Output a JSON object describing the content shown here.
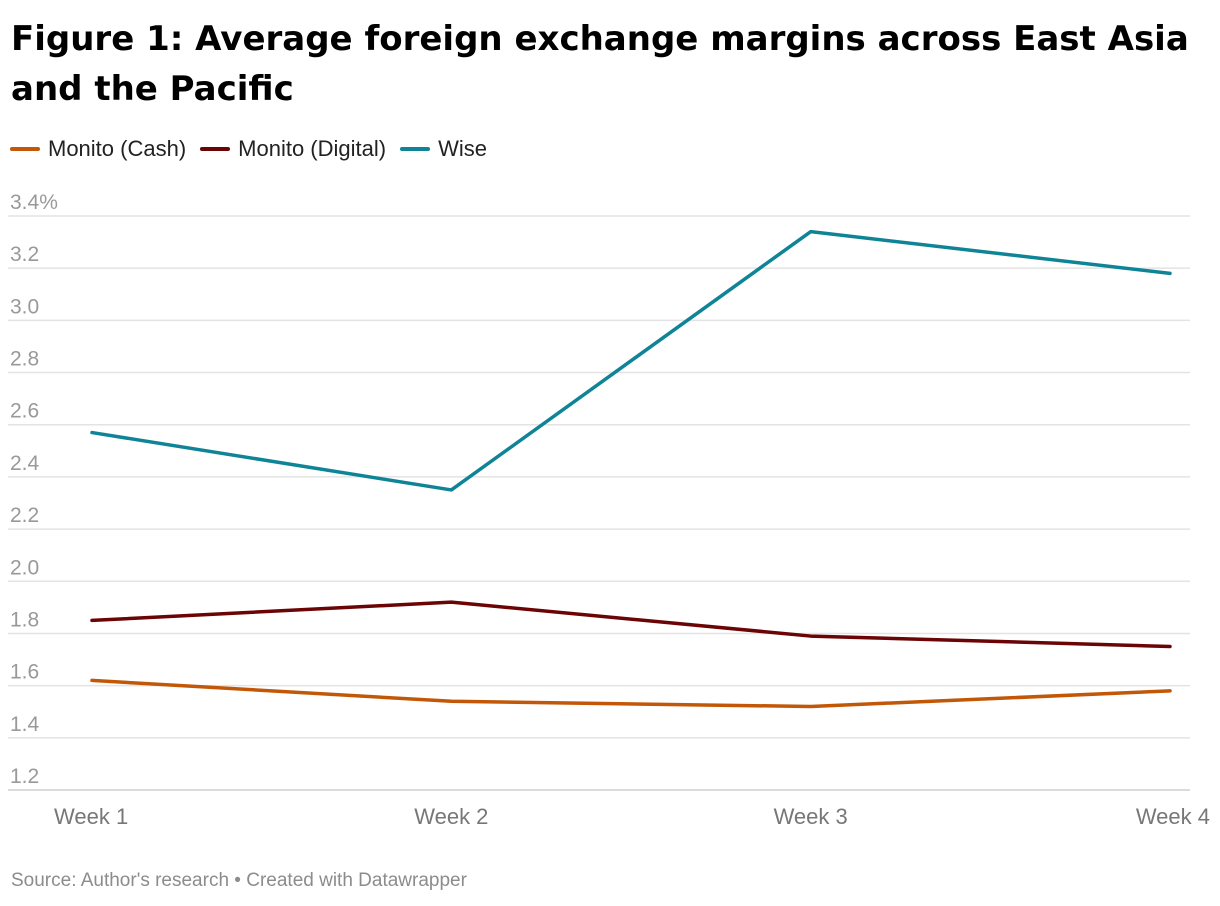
{
  "title": "Figure 1: Average foreign exchange margins across East Asia and the Pacific",
  "source": "Source: Author's research • Created with Datawrapper",
  "chart_data": {
    "type": "line",
    "title": "Figure 1: Average foreign exchange margins across East Asia and the Pacific",
    "xlabel": "",
    "ylabel": "",
    "categories": [
      "Week 1",
      "Week 2",
      "Week 3",
      "Week 4"
    ],
    "ylim": [
      1.2,
      3.4
    ],
    "yticks": [
      1.2,
      1.4,
      1.6,
      1.8,
      2.0,
      2.2,
      2.4,
      2.6,
      2.8,
      3.0,
      3.2,
      3.4
    ],
    "ytick_labels": [
      "1.2",
      "1.4",
      "1.6",
      "1.8",
      "2.0",
      "2.2",
      "2.4",
      "2.6",
      "2.8",
      "3.0",
      "3.2",
      "3.4%"
    ],
    "grid": true,
    "legend_position": "top-left",
    "series": [
      {
        "name": "Monito (Cash)",
        "color": "#c25807",
        "values": [
          1.62,
          1.54,
          1.52,
          1.58
        ]
      },
      {
        "name": "Monito (Digital)",
        "color": "#6b0404",
        "values": [
          1.85,
          1.92,
          1.79,
          1.75
        ]
      },
      {
        "name": "Wise",
        "color": "#0f8497",
        "values": [
          2.57,
          2.35,
          3.34,
          3.18
        ]
      }
    ]
  }
}
